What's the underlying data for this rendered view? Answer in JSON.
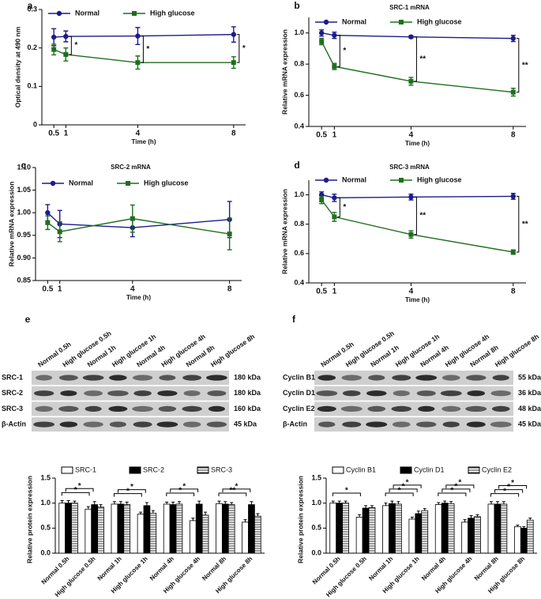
{
  "chart_data": [
    {
      "type": "line",
      "panel": "a",
      "xlabel": "Time (h)",
      "ylabel": "Optical density at 490 nm",
      "x": [
        0.5,
        1,
        4,
        8
      ],
      "xlim": [
        0,
        8.5
      ],
      "xticks": [
        0.5,
        1,
        4,
        8
      ],
      "ylim": [
        0,
        0.3
      ],
      "yticks": [
        0,
        0.1,
        0.2,
        0.3
      ],
      "series": [
        {
          "name": "Normal",
          "color": "#1c1c8c",
          "marker": "circle",
          "values": [
            0.228,
            0.23,
            0.231,
            0.235
          ],
          "errors": [
            0.022,
            0.014,
            0.022,
            0.02
          ]
        },
        {
          "name": "High glucose",
          "color": "#1f6e1f",
          "marker": "square",
          "values": [
            0.196,
            0.183,
            0.162,
            0.162
          ],
          "errors": [
            0.014,
            0.017,
            0.017,
            0.015
          ]
        }
      ],
      "annotations": [
        {
          "x": 1,
          "text": "*"
        },
        {
          "x": 4,
          "text": "*"
        },
        {
          "x": 8,
          "text": "*"
        }
      ]
    },
    {
      "type": "line",
      "panel": "b",
      "title": "SRC-1 mRNA",
      "xlabel": "Time (h)",
      "ylabel": "Relative mRNA expression",
      "x": [
        0.5,
        1,
        4,
        8
      ],
      "xlim": [
        0,
        8.5
      ],
      "xticks": [
        0.5,
        1,
        4,
        8
      ],
      "ylim": [
        0.4,
        1.1
      ],
      "yticks": [
        0.4,
        0.6,
        0.8,
        {
          "value": 1,
          "label": "1.0"
        }
      ],
      "series": [
        {
          "name": "Normal",
          "color": "#1c1c8c",
          "marker": "circle",
          "values": [
            1.0,
            0.985,
            0.975,
            0.965
          ],
          "errors": [
            0.02,
            0.02,
            0.008,
            0.02
          ]
        },
        {
          "name": "High glucose",
          "color": "#1f6e1f",
          "marker": "square",
          "values": [
            0.945,
            0.785,
            0.69,
            0.62
          ],
          "errors": [
            0.02,
            0.02,
            0.025,
            0.025
          ]
        }
      ],
      "annotations": [
        {
          "x": 1,
          "text": "*"
        },
        {
          "x": 4,
          "text": "**"
        },
        {
          "x": 8,
          "text": "**"
        }
      ]
    },
    {
      "type": "line",
      "panel": "c",
      "title": "SRC-2 mRNA",
      "xlabel": "Time (h)",
      "ylabel": "Relative mRNA expression",
      "x": [
        0.5,
        1,
        4,
        8
      ],
      "xlim": [
        0,
        8.5
      ],
      "xticks": [
        0.5,
        1,
        4,
        8
      ],
      "ylim": [
        0.85,
        1.1
      ],
      "yticks": [
        0.85,
        {
          "value": 0.9,
          "label": "0.90"
        },
        0.95,
        {
          "value": 1,
          "label": "1.00"
        },
        1.05,
        {
          "value": 1.1,
          "label": "1.10"
        }
      ],
      "series": [
        {
          "name": "Normal",
          "color": "#1c1c8c",
          "marker": "circle",
          "values": [
            1.0,
            0.975,
            0.967,
            0.985
          ],
          "errors": [
            0.018,
            0.03,
            0.02,
            0.04
          ]
        },
        {
          "name": "High glucose",
          "color": "#1f6e1f",
          "marker": "square",
          "values": [
            0.978,
            0.958,
            0.987,
            0.953
          ],
          "errors": [
            0.015,
            0.022,
            0.03,
            0.035
          ]
        }
      ],
      "annotations": []
    },
    {
      "type": "line",
      "panel": "d",
      "title": "SRC-3 mRNA",
      "xlabel": "Time (h)",
      "ylabel": "Relative mRNA expression",
      "x": [
        0.5,
        1,
        4,
        8
      ],
      "xlim": [
        0,
        8.5
      ],
      "xticks": [
        0.5,
        1,
        4,
        8
      ],
      "ylim": [
        0.4,
        1.1
      ],
      "yticks": [
        0.4,
        0.6,
        0.8,
        {
          "value": 1,
          "label": "1.0"
        }
      ],
      "series": [
        {
          "name": "Normal",
          "color": "#1c1c8c",
          "marker": "circle",
          "values": [
            1.0,
            0.98,
            0.985,
            0.99
          ],
          "errors": [
            0.02,
            0.025,
            0.02,
            0.02
          ]
        },
        {
          "name": "High glucose",
          "color": "#1f6e1f",
          "marker": "square",
          "values": [
            0.965,
            0.85,
            0.73,
            0.61
          ],
          "errors": [
            0.025,
            0.03,
            0.025,
            0.015
          ]
        }
      ],
      "annotations": [
        {
          "x": 1,
          "text": "*"
        },
        {
          "x": 4,
          "text": "**"
        },
        {
          "x": 8,
          "text": "**"
        }
      ]
    },
    {
      "type": "bar",
      "ylabel": "Relative protein expression",
      "categories": [
        "Normal 0.5h",
        "High glucose 0.5h",
        "Normal 1h",
        "High glucose 1h",
        "Normal 4h",
        "High glucose 4h",
        "Normal 8h",
        "High glucose 8h"
      ],
      "ylim": [
        0,
        1.5
      ],
      "yticks": [
        {
          "value": 0,
          "label": "0.0"
        },
        0.5,
        {
          "value": 1,
          "label": "1.0"
        },
        1.5
      ],
      "series": [
        {
          "name": "SRC-1",
          "color": "#ffffff",
          "hatch": false,
          "values": [
            1.0,
            0.88,
            0.98,
            0.78,
            0.98,
            0.65,
            0.99,
            0.62
          ],
          "errors": [
            0.05,
            0.05,
            0.05,
            0.04,
            0.04,
            0.05,
            0.05,
            0.05
          ]
        },
        {
          "name": "SRC-2",
          "color": "#000000",
          "hatch": false,
          "values": [
            1.0,
            0.97,
            0.98,
            0.95,
            0.97,
            0.98,
            0.98,
            0.97
          ],
          "errors": [
            0.05,
            0.06,
            0.05,
            0.06,
            0.05,
            0.06,
            0.05,
            0.06
          ]
        },
        {
          "name": "SRC-3",
          "color": "#ffffff",
          "hatch": true,
          "values": [
            1.0,
            0.92,
            0.97,
            0.8,
            0.98,
            0.76,
            0.97,
            0.74
          ],
          "errors": [
            0.04,
            0.05,
            0.05,
            0.05,
            0.05,
            0.06,
            0.04,
            0.05
          ]
        }
      ],
      "annotations": [
        {
          "from": 0,
          "to": 1,
          "text": "*"
        },
        {
          "from": 0,
          "to": 1,
          "text": "*"
        },
        {
          "from": 2,
          "to": 3,
          "text": "*"
        },
        {
          "from": 2,
          "to": 3,
          "text": "*"
        },
        {
          "from": 4,
          "to": 5,
          "text": "*"
        },
        {
          "from": 4,
          "to": 5,
          "text": "*"
        },
        {
          "from": 6,
          "to": 7,
          "text": "**"
        },
        {
          "from": 6,
          "to": 7,
          "text": "*"
        }
      ]
    },
    {
      "type": "bar",
      "ylabel": "Relative protein expression",
      "categories": [
        "Normal 0.5h",
        "High glucose 0.5h",
        "Normal 1h",
        "High glucose 1h",
        "Normal 4h",
        "High glucose 4h",
        "Normal 8h",
        "High glucose 8h"
      ],
      "ylim": [
        0,
        1.5
      ],
      "yticks": [
        {
          "value": 0,
          "label": "0.0"
        },
        0.5,
        {
          "value": 1,
          "label": "1.0"
        },
        1.5
      ],
      "series": [
        {
          "name": "Cyclin B1",
          "color": "#ffffff",
          "hatch": false,
          "values": [
            1.0,
            0.72,
            0.95,
            0.68,
            0.97,
            0.62,
            0.98,
            0.53
          ],
          "errors": [
            0.04,
            0.05,
            0.05,
            0.04,
            0.04,
            0.05,
            0.05,
            0.03
          ]
        },
        {
          "name": "Cyclin D1",
          "color": "#000000",
          "hatch": false,
          "values": [
            1.0,
            0.9,
            0.99,
            0.79,
            1.0,
            0.7,
            0.98,
            0.5
          ],
          "errors": [
            0.04,
            0.05,
            0.05,
            0.05,
            0.04,
            0.05,
            0.05,
            0.03
          ]
        },
        {
          "name": "Cyclin E2",
          "color": "#ffffff",
          "hatch": true,
          "values": [
            1.0,
            0.91,
            0.98,
            0.85,
            0.99,
            0.73,
            0.98,
            0.66
          ],
          "errors": [
            0.04,
            0.04,
            0.05,
            0.04,
            0.04,
            0.04,
            0.05,
            0.04
          ]
        }
      ],
      "annotations": [
        {
          "from": 0,
          "to": 1,
          "text": "*"
        },
        {
          "from": 2,
          "to": 3,
          "text": "*"
        },
        {
          "from": 2,
          "to": 3,
          "text": "*"
        },
        {
          "from": 2,
          "to": 3,
          "text": "*"
        },
        {
          "from": 4,
          "to": 5,
          "text": "*"
        },
        {
          "from": 4,
          "to": 5,
          "text": "*"
        },
        {
          "from": 4,
          "to": 5,
          "text": "*"
        },
        {
          "from": 6,
          "to": 7,
          "text": "*"
        },
        {
          "from": 6,
          "to": 7,
          "text": "*"
        },
        {
          "from": 6,
          "to": 7,
          "text": "*"
        }
      ]
    }
  ],
  "blots": [
    {
      "label": "e",
      "rows": [
        {
          "name": "SRC-1",
          "size": "180 kDa"
        },
        {
          "name": "SRC-2",
          "size": "180 kDa"
        },
        {
          "name": "SRC-3",
          "size": "160 kDa"
        },
        {
          "name": "β-Actin",
          "size": "45 kDa"
        }
      ]
    },
    {
      "label": "f",
      "rows": [
        {
          "name": "Cyclin B1",
          "size": "55 kDa"
        },
        {
          "name": "Cyclin D1",
          "size": "36 kDa"
        },
        {
          "name": "Cyclin E2",
          "size": "48 kDa"
        },
        {
          "name": "β-Actin",
          "size": "45 kDa"
        }
      ]
    }
  ]
}
